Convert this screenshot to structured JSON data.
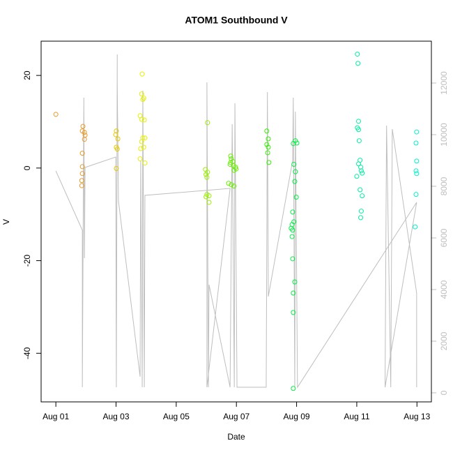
{
  "chart_data": {
    "type": "scatter",
    "title": "ATOM1 Southbound V",
    "x_label": "Date",
    "y_label": "V",
    "xlim": [
      0.51,
      13.48
    ],
    "ylim": [
      -50.5,
      27.4
    ],
    "y2lim": [
      -351,
      13622
    ],
    "xticks": [
      {
        "value": 1,
        "label": "Aug 01"
      },
      {
        "value": 3,
        "label": "Aug 03"
      },
      {
        "value": 5,
        "label": "Aug 05"
      },
      {
        "value": 7,
        "label": "Aug 07"
      },
      {
        "value": 9,
        "label": "Aug 09"
      },
      {
        "value": 11,
        "label": "Aug 11"
      },
      {
        "value": 13,
        "label": "Aug 13"
      }
    ],
    "yticks": [
      -40,
      -20,
      0,
      20
    ],
    "y2ticks": [
      0,
      2000,
      4000,
      6000,
      8000,
      10000,
      12000
    ],
    "y2_color": "#bebebe",
    "series": [
      {
        "type": "line",
        "axis": "y2",
        "color": "#bebebe",
        "x": [
          1.0,
          1.88,
          1.88,
          1.93,
          1.95,
          1.97,
          2.99,
          3.01,
          3.04,
          3.04,
          3.08,
          3.8,
          3.82,
          3.87,
          3.89,
          3.94,
          3.96,
          6.79,
          6.02,
          6.02,
          6.07,
          6.09,
          6.79,
          6.86,
          6.93,
          6.95,
          7.02,
          7.99,
          8.03,
          8.06,
          8.87,
          8.89,
          8.94,
          8.96,
          9.03,
          12.99,
          11.94,
          11.99,
          12.13,
          12.18,
          12.99,
          12.99
        ],
        "values": [
          8595,
          6300,
          216,
          11432,
          5216,
          8730,
          9135,
          216,
          13108,
          11973,
          7432,
          622,
          9000,
          216,
          11703,
          216,
          7649,
          7919,
          216,
          12027,
          216,
          4189,
          216,
          10405,
          216,
          11216,
          216,
          216,
          11649,
          3730,
          9000,
          11432,
          216,
          10892,
          216,
          7378,
          216,
          10351,
          216,
          10216,
          3865,
          216
        ]
      },
      {
        "color": "#e89a2c",
        "x": [
          1.0,
          1.9,
          1.88,
          1.95,
          1.97,
          1.95,
          1.88,
          1.88,
          1.88,
          1.86,
          1.86
        ],
        "values": [
          11.6,
          9.0,
          8.0,
          7.7,
          7.1,
          6.2,
          3.2,
          0.3,
          -1.2,
          -2.7,
          -3.8
        ]
      },
      {
        "color": "#e6c800",
        "x": [
          3.01,
          2.99,
          3.06,
          3.01,
          3.04,
          3.01
        ],
        "values": [
          8.0,
          7.2,
          6.3,
          4.5,
          4.1,
          -0.1
        ]
      },
      {
        "color": "#e6f000",
        "x": [
          3.87,
          3.85,
          3.92,
          3.89,
          3.8,
          3.85,
          3.94,
          3.89,
          3.96,
          3.85,
          3.92,
          3.82,
          3.8,
          3.96
        ],
        "values": [
          20.3,
          16.0,
          15.1,
          14.8,
          11.3,
          10.5,
          10.4,
          6.5,
          6.5,
          5.7,
          4.5,
          4.2,
          2.0,
          1.1
        ]
      },
      {
        "color": "#99f000",
        "x": [
          6.04,
          5.97,
          6.04,
          5.99,
          6.02,
          6.02,
          6.09,
          6.09,
          5.99
        ],
        "values": [
          9.8,
          -0.3,
          -0.9,
          -1.4,
          -2.0,
          -5.7,
          -6.0,
          -7.4,
          -6.2
        ]
      },
      {
        "color": "#66f000",
        "x": [
          6.81,
          6.83,
          6.88,
          6.79,
          6.9,
          6.97,
          6.92,
          6.99,
          6.81,
          6.74,
          6.83,
          6.92
        ],
        "values": [
          2.6,
          2.0,
          1.4,
          0.8,
          0.5,
          0.2,
          -0.5,
          -0.2,
          1.2,
          -3.3,
          -3.6,
          -3.9
        ]
      },
      {
        "color": "#33f000",
        "x": [
          8.01,
          8.06,
          8.01,
          8.06,
          8.04,
          8.08
        ],
        "values": [
          8.0,
          6.3,
          5.1,
          4.5,
          3.3,
          1.2
        ]
      },
      {
        "color": "#00f040",
        "x": [
          8.89,
          8.96,
          9.01,
          8.91,
          8.96,
          8.94,
          8.99,
          8.87,
          8.85,
          8.82,
          8.87,
          8.91,
          8.85,
          8.87,
          8.94,
          8.89,
          8.89,
          8.89
        ],
        "values": [
          5.3,
          5.9,
          5.4,
          0.8,
          -0.8,
          -2.9,
          -6.3,
          -9.5,
          -12.2,
          -13.0,
          -13.4,
          -11.6,
          -14.8,
          -19.6,
          -24.6,
          -27.0,
          -31.2,
          -47.6
        ]
      },
      {
        "color": "#00f0a0",
        "x": [
          11.02,
          11.04,
          11.06,
          11.02,
          11.06,
          11.08,
          11.11,
          11.06,
          11.13,
          11.15,
          11.18,
          11.0,
          11.11,
          11.18,
          11.15,
          11.13
        ],
        "values": [
          24.6,
          22.6,
          10.1,
          8.7,
          8.3,
          5.9,
          1.7,
          0.9,
          0.2,
          -0.6,
          -1.1,
          -1.8,
          -4.7,
          -6.0,
          -9.3,
          -10.7
        ]
      },
      {
        "color": "#00f0c8",
        "x": [
          12.99,
          12.97,
          12.99,
          12.97,
          12.99,
          12.97,
          12.94
        ],
        "values": [
          7.8,
          5.4,
          1.5,
          -0.6,
          -1.2,
          -5.7,
          -12.7
        ]
      }
    ]
  }
}
